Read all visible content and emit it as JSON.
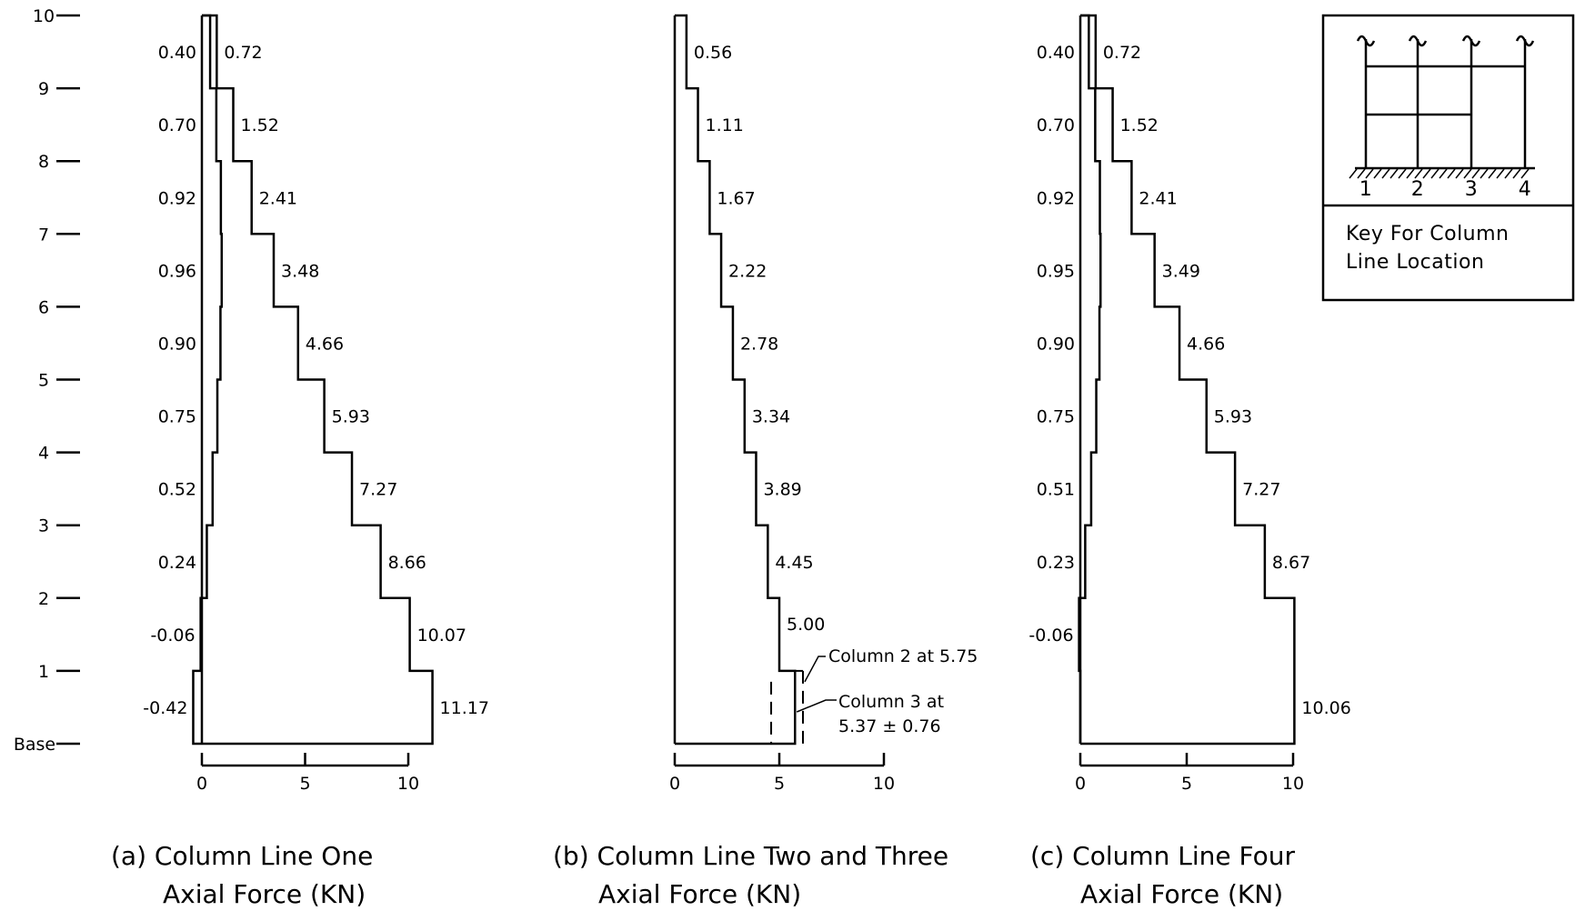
{
  "floor_axis": {
    "labels": [
      "Base",
      "1",
      "2",
      "3",
      "4",
      "5",
      "6",
      "7",
      "8",
      "9",
      "10"
    ]
  },
  "key": {
    "caption_lines": [
      "Key For Column",
      "Line Location"
    ],
    "column_numbers": [
      "1",
      "2",
      "3",
      "4"
    ]
  },
  "chart_data": [
    {
      "type": "step",
      "caption_lines": [
        "(a) Column Line One",
        "Axial Force (KN)"
      ],
      "xlim": [
        0,
        10
      ],
      "x_ticks": [
        "0",
        "5",
        "10"
      ],
      "floors": [
        "Base-1",
        "1-2",
        "2-3",
        "3-4",
        "4-5",
        "5-6",
        "6-7",
        "7-8",
        "8-9",
        "9-10"
      ],
      "series": [
        {
          "values": [
            -0.42,
            -0.06,
            0.24,
            0.52,
            0.75,
            0.9,
            0.96,
            0.92,
            0.7,
            0.4
          ],
          "labels": [
            "-0.42",
            "-0.06",
            "0.24",
            "0.52",
            "0.75",
            "0.90",
            "0.96",
            "0.92",
            "0.70",
            "0.40"
          ]
        },
        {
          "values": [
            11.17,
            10.07,
            8.66,
            7.27,
            5.93,
            4.66,
            3.48,
            2.41,
            1.52,
            0.72
          ],
          "labels": [
            "11.17",
            "10.07",
            "8.66",
            "7.27",
            "5.93",
            "4.66",
            "3.48",
            "2.41",
            "1.52",
            "0.72"
          ]
        }
      ]
    },
    {
      "type": "step",
      "caption_lines": [
        "(b) Column Line Two and Three",
        "Axial Force (KN)"
      ],
      "xlim": [
        0,
        10
      ],
      "x_ticks": [
        "0",
        "5",
        "10"
      ],
      "floors": [
        "Base-1",
        "1-2",
        "2-3",
        "3-4",
        "4-5",
        "5-6",
        "6-7",
        "7-8",
        "8-9",
        "9-10"
      ],
      "series": [
        {
          "values": [
            5.75,
            5.0,
            4.45,
            3.89,
            3.34,
            2.78,
            2.22,
            1.67,
            1.11,
            0.56
          ],
          "labels": [
            "",
            "5.00",
            "4.45",
            "3.89",
            "3.34",
            "2.78",
            "2.22",
            "1.67",
            "1.11",
            "0.56"
          ]
        }
      ],
      "base_detail": {
        "column2_value": 5.75,
        "column3_mean": 5.37,
        "column3_range": 0.76,
        "column2_label": "Column 2 at 5.75",
        "column3_label_lines": [
          "Column 3 at",
          "5.37 ± 0.76"
        ]
      }
    },
    {
      "type": "step",
      "caption_lines": [
        "(c) Column Line Four",
        "Axial Force (KN)"
      ],
      "xlim": [
        0,
        10
      ],
      "x_ticks": [
        "0",
        "5",
        "10"
      ],
      "floors": [
        "Base-1",
        "1-2",
        "2-3",
        "3-4",
        "4-5",
        "5-6",
        "6-7",
        "7-8",
        "8-9",
        "9-10"
      ],
      "series": [
        {
          "values": [
            0.0,
            -0.06,
            0.23,
            0.51,
            0.75,
            0.9,
            0.95,
            0.92,
            0.7,
            0.4
          ],
          "labels": [
            "",
            "-0.06",
            "0.23",
            "0.51",
            "0.75",
            "0.90",
            "0.95",
            "0.92",
            "0.70",
            "0.40"
          ]
        },
        {
          "values": [
            10.06,
            10.06,
            8.67,
            7.27,
            5.93,
            4.66,
            3.49,
            2.41,
            1.52,
            0.72
          ],
          "labels": [
            "10.06",
            "",
            "8.67",
            "7.27",
            "5.93",
            "4.66",
            "3.49",
            "2.41",
            "1.52",
            "0.72"
          ]
        }
      ]
    }
  ]
}
